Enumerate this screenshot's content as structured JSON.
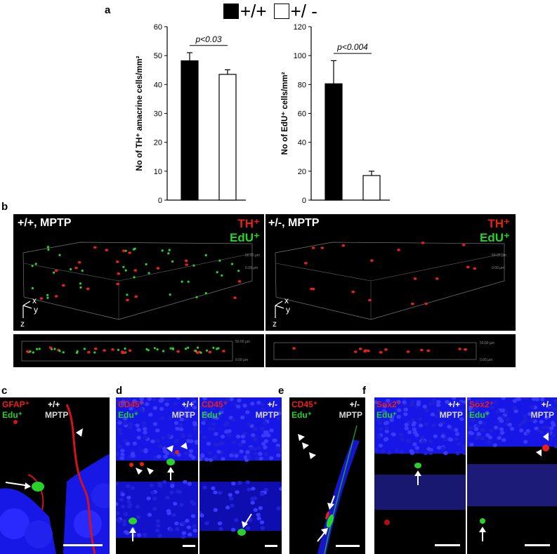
{
  "panel_letters": {
    "a": "a",
    "b": "b",
    "c": "c",
    "d": "d",
    "e": "e",
    "f": "f"
  },
  "legend": {
    "wt": "+/+",
    "het": "+/ -"
  },
  "colors": {
    "wt": "#000000",
    "het": "#ffffff",
    "tissue": "#1a1aff",
    "red": "#e8201c",
    "green": "#28d22a"
  },
  "chart_data": [
    {
      "type": "bar",
      "categories": [
        "+/+",
        "+/ -"
      ],
      "values": [
        48.2,
        43.5
      ],
      "errors": [
        2.8,
        1.6
      ],
      "ylabel": "No of TH⁺ amacrine cells/mm²",
      "ylim": [
        0,
        60
      ],
      "yticks": [
        0,
        10,
        20,
        30,
        40,
        50,
        60
      ],
      "annotation": "p<0.03",
      "grid": false
    },
    {
      "type": "bar",
      "categories": [
        "+/+",
        "+/ -"
      ],
      "values": [
        80.5,
        17.0
      ],
      "errors": [
        16.0,
        3.0
      ],
      "ylabel": "No of EdU⁺ cells/mm²",
      "ylim": [
        0,
        120
      ],
      "yticks": [
        0,
        20,
        40,
        60,
        80,
        100,
        120
      ],
      "annotation": "p<0.004",
      "grid": false
    }
  ],
  "panel_b": {
    "left": {
      "genotype": "+/+, MPTP",
      "th": "TH⁺",
      "edu": "EdU⁺",
      "depth_top": "50.00 µm",
      "depth_bottom": "0.00 µm"
    },
    "right": {
      "genotype": "+/-, MPTP",
      "th": "TH⁺",
      "edu": "EdU⁺",
      "depth_top": "50.00 µm",
      "depth_bottom": "0.00 µm"
    },
    "axes": {
      "x": "x",
      "y": "y",
      "z": "z"
    }
  },
  "panel_c": {
    "marker": "GFAP⁺",
    "edu": "Edu⁺",
    "genotype": "+/+",
    "treatment": "MPTP"
  },
  "panel_d": {
    "left": {
      "marker": "CD45⁺",
      "edu": "Edu⁺",
      "genotype": "+/+",
      "treatment": "MPTP"
    },
    "right": {
      "marker": "CD45⁺",
      "edu": "Edu⁺",
      "genotype": "+/-",
      "treatment": "MPTP"
    }
  },
  "panel_e": {
    "marker": "CD45⁺",
    "edu": "Edu⁺",
    "genotype": "+/-",
    "treatment": "MPTP"
  },
  "panel_f": {
    "left": {
      "marker": "Sox2⁺",
      "edu": "Edu⁺",
      "genotype": "+/+",
      "treatment": "MPTP"
    },
    "right": {
      "marker": "Sox2⁺",
      "edu": "Edu⁺",
      "genotype": "+/-",
      "treatment": "MPTP"
    }
  }
}
